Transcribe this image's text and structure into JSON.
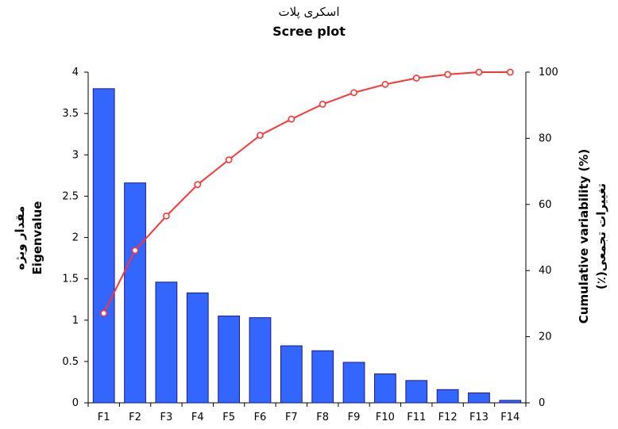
{
  "chart_data": {
    "type": "bar",
    "title_fa": "اسکری پلات",
    "title": "Scree plot",
    "ylabel_left_fa": "مقدار ویژه",
    "ylabel_left": "Eigenvalue",
    "ylabel_right": "Cumulative variability (%)",
    "ylabel_right_fa": "تغییرات تجمعی(٪)",
    "categories": [
      "F1",
      "F2",
      "F3",
      "F4",
      "F5",
      "F6",
      "F7",
      "F8",
      "F9",
      "F10",
      "F11",
      "F12",
      "F13",
      "F14"
    ],
    "series": [
      {
        "type": "bar",
        "axis": "left",
        "color": "#3366ff",
        "values": [
          3.8,
          2.66,
          1.46,
          1.33,
          1.05,
          1.03,
          0.69,
          0.63,
          0.49,
          0.35,
          0.27,
          0.16,
          0.12,
          0.03
        ]
      },
      {
        "type": "line",
        "axis": "right",
        "color": "#ff3333",
        "values": [
          27.1,
          46.1,
          56.5,
          66.0,
          73.5,
          80.9,
          85.8,
          90.3,
          93.8,
          96.3,
          98.2,
          99.3,
          100.0,
          100.0
        ]
      }
    ],
    "ylim_left": [
      0,
      4
    ],
    "yticks_left": [
      "0",
      "0.5",
      "1",
      "1.5",
      "2",
      "2.5",
      "3",
      "3.5",
      "4"
    ],
    "ylim_right": [
      0,
      100
    ],
    "yticks_right": [
      "0",
      "20",
      "40",
      "60",
      "80",
      "100"
    ],
    "grid": false,
    "legend": "none"
  }
}
